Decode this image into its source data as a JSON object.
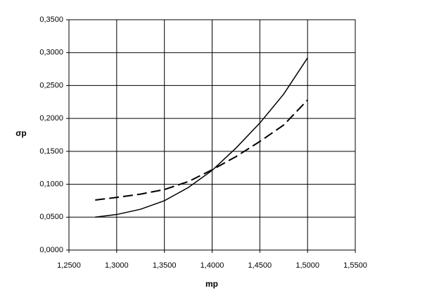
{
  "chart_data": {
    "type": "line",
    "x_label": "mp",
    "y_label": "σp",
    "x": [
      1.2775,
      1.3,
      1.325,
      1.35,
      1.375,
      1.4,
      1.425,
      1.45,
      1.475,
      1.5
    ],
    "series": [
      {
        "color": "#000000",
        "style": "solid",
        "values": [
          0.05,
          0.054,
          0.062,
          0.075,
          0.095,
          0.121,
          0.155,
          0.193,
          0.237,
          0.292
        ]
      },
      {
        "color": "#000000",
        "style": "dashed",
        "values": [
          0.076,
          0.08,
          0.085,
          0.092,
          0.104,
          0.122,
          0.142,
          0.165,
          0.19,
          0.228
        ]
      }
    ],
    "xlim": [
      1.25,
      1.55
    ],
    "xticks": [
      {
        "value": 1.25,
        "label": "1,2500"
      },
      {
        "value": 1.3,
        "label": "1,3000"
      },
      {
        "value": 1.35,
        "label": "1,3500"
      },
      {
        "value": 1.4,
        "label": "1,4000"
      },
      {
        "value": 1.45,
        "label": "1,4500"
      },
      {
        "value": 1.5,
        "label": "1,5000"
      },
      {
        "value": 1.55,
        "label": "1,5500"
      }
    ],
    "ylim": [
      0,
      0.35
    ],
    "yticks": [
      {
        "value": 0,
        "label": "0,0000"
      },
      {
        "value": 0.05,
        "label": "0,0500"
      },
      {
        "value": 0.1,
        "label": "0,1000"
      },
      {
        "value": 0.15,
        "label": "0,1500"
      },
      {
        "value": 0.2,
        "label": "0,2000"
      },
      {
        "value": 0.25,
        "label": "0,2500"
      },
      {
        "value": 0.3,
        "label": "0,3000"
      },
      {
        "value": 0.35,
        "label": "0,3500"
      }
    ],
    "grid": true
  }
}
